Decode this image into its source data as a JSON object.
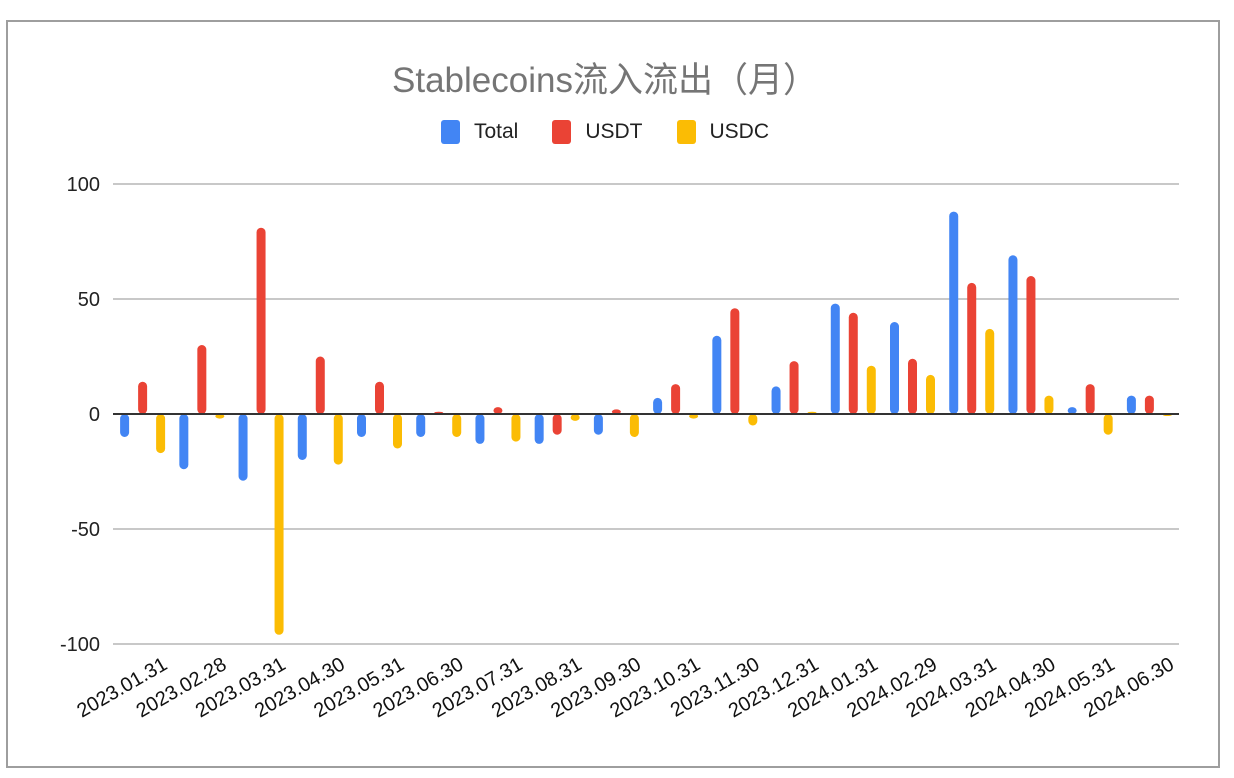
{
  "chart_data": {
    "type": "bar",
    "title": "Stablecoins流入流出（月）",
    "xlabel": "",
    "ylabel": "",
    "ylim": [
      -100,
      100
    ],
    "yticks": [
      100,
      50,
      0,
      -50,
      -100
    ],
    "grid": true,
    "legend_position": "top",
    "categories": [
      "2023.01.31",
      "2023.02.28",
      "2023.03.31",
      "2023.04.30",
      "2023.05.31",
      "2023.06.30",
      "2023.07.31",
      "2023.08.31",
      "2023.09.30",
      "2023.10.31",
      "2023.11.30",
      "2023.12.31",
      "2024.01.31",
      "2024.02.29",
      "2024.03.31",
      "2024.04.30",
      "2024.05.31",
      "2024.06.30"
    ],
    "series": [
      {
        "name": "Total",
        "color": "#4285f4",
        "values": [
          -10,
          -24,
          -29,
          -20,
          -10,
          -10,
          -13,
          -13,
          -9,
          7,
          34,
          12,
          48,
          40,
          88,
          69,
          3,
          8
        ]
      },
      {
        "name": "USDT",
        "color": "#ea4335",
        "values": [
          14,
          30,
          81,
          25,
          14,
          1,
          3,
          -9,
          2,
          13,
          46,
          23,
          44,
          24,
          57,
          60,
          13,
          8
        ]
      },
      {
        "name": "USDC",
        "color": "#fbbc04",
        "values": [
          -17,
          -2,
          -96,
          -22,
          -15,
          -10,
          -12,
          -3,
          -10,
          -2,
          -5,
          1,
          21,
          17,
          37,
          8,
          -9,
          0
        ]
      }
    ]
  }
}
